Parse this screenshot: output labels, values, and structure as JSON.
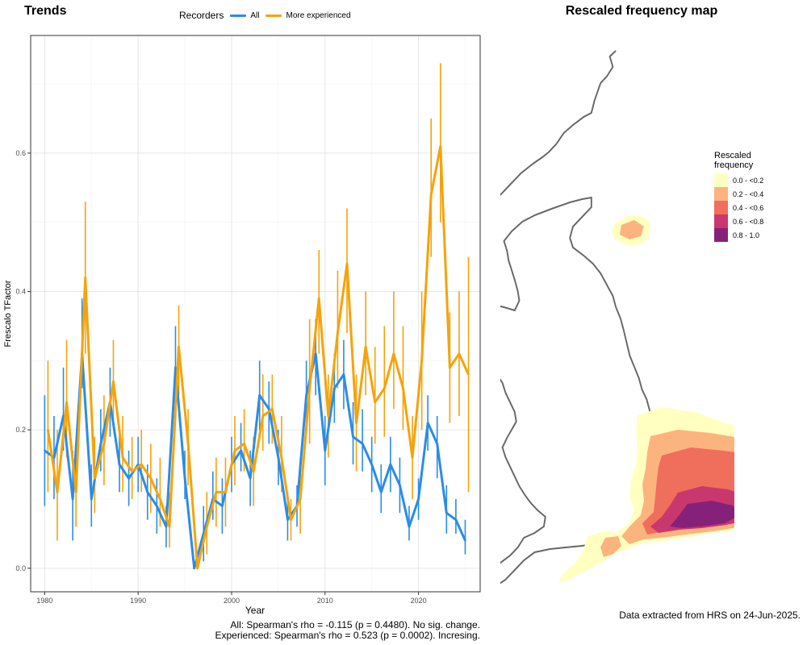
{
  "left_panel": {
    "title": "Trends",
    "legend": {
      "title": "Recorders",
      "items": [
        {
          "label": "All",
          "color": "#2B8CE6"
        },
        {
          "label": "More experienced",
          "color": "#F5A30A"
        }
      ]
    },
    "stats": {
      "all": "All: Spearman's rho = -0.115 (p = 0.4480). No sig. change.",
      "experienced": "Experienced: Spearman's rho = 0.523 (p = 0.0002). Incresing."
    }
  },
  "chart_data": {
    "type": "line",
    "xlabel": "Year",
    "ylabel": "Frescalo TFactor",
    "xlim": [
      1978.5,
      2026.6
    ],
    "ylim": [
      -0.034,
      0.77
    ],
    "x_ticks": [
      1980,
      1990,
      2000,
      2010,
      2020
    ],
    "y_ticks": [
      0.0,
      0.2,
      0.4,
      0.6
    ],
    "y_tick_labels": [
      "0.0",
      "0.2",
      "0.4",
      "0.6"
    ],
    "grid": true,
    "series": [
      {
        "name": "All",
        "color": "#2B8CE6",
        "x": [
          1980,
          1981,
          1982,
          1983,
          1984,
          1985,
          1986,
          1987,
          1988,
          1989,
          1990,
          1991,
          1992,
          1993,
          1994,
          1995,
          1996,
          1997,
          1998,
          1999,
          2000,
          2001,
          2002,
          2003,
          2004,
          2005,
          2006,
          2007,
          2008,
          2009,
          2010,
          2011,
          2012,
          2013,
          2014,
          2015,
          2016,
          2017,
          2018,
          2019,
          2020,
          2021,
          2022,
          2023,
          2024,
          2025
        ],
        "values": [
          0.17,
          0.16,
          0.22,
          0.1,
          0.31,
          0.1,
          0.18,
          0.24,
          0.15,
          0.13,
          0.15,
          0.11,
          0.09,
          0.06,
          0.29,
          0.13,
          0.0,
          0.05,
          0.1,
          0.09,
          0.15,
          0.17,
          0.13,
          0.25,
          0.23,
          0.16,
          0.07,
          0.09,
          0.25,
          0.31,
          0.17,
          0.26,
          0.28,
          0.19,
          0.18,
          0.15,
          0.11,
          0.15,
          0.12,
          0.06,
          0.1,
          0.21,
          0.18,
          0.08,
          0.07,
          0.04
        ],
        "err_low": [
          0.09,
          0.1,
          0.17,
          0.04,
          0.26,
          0.06,
          0.14,
          0.19,
          0.11,
          0.09,
          0.11,
          0.07,
          0.05,
          0.03,
          0.23,
          0.1,
          0.0,
          0.01,
          0.07,
          0.05,
          0.11,
          0.14,
          0.09,
          0.2,
          0.18,
          0.12,
          0.04,
          0.06,
          0.2,
          0.25,
          0.12,
          0.21,
          0.23,
          0.15,
          0.14,
          0.11,
          0.08,
          0.11,
          0.08,
          0.04,
          0.07,
          0.17,
          0.13,
          0.05,
          0.05,
          0.02
        ],
        "err_high": [
          0.25,
          0.22,
          0.29,
          0.17,
          0.39,
          0.15,
          0.23,
          0.29,
          0.2,
          0.17,
          0.19,
          0.15,
          0.13,
          0.09,
          0.35,
          0.17,
          0.01,
          0.09,
          0.14,
          0.13,
          0.19,
          0.21,
          0.17,
          0.3,
          0.27,
          0.2,
          0.11,
          0.12,
          0.3,
          0.36,
          0.22,
          0.31,
          0.33,
          0.24,
          0.23,
          0.19,
          0.15,
          0.19,
          0.16,
          0.09,
          0.13,
          0.25,
          0.22,
          0.12,
          0.1,
          0.07
        ]
      },
      {
        "name": "More experienced",
        "color": "#F5A30A",
        "x": [
          1980,
          1981,
          1982,
          1983,
          1984,
          1985,
          1986,
          1987,
          1988,
          1989,
          1990,
          1991,
          1992,
          1993,
          1994,
          1995,
          1996,
          1997,
          1998,
          1999,
          2000,
          2001,
          2002,
          2003,
          2004,
          2005,
          2006,
          2007,
          2008,
          2009,
          2010,
          2011,
          2012,
          2013,
          2014,
          2015,
          2016,
          2017,
          2018,
          2019,
          2020,
          2021,
          2022,
          2023,
          2024,
          2025
        ],
        "values": [
          0.2,
          0.11,
          0.24,
          0.11,
          0.42,
          0.13,
          0.18,
          0.27,
          0.16,
          0.14,
          0.15,
          0.13,
          0.1,
          0.06,
          0.32,
          0.18,
          0.0,
          0.06,
          0.11,
          0.11,
          0.17,
          0.18,
          0.14,
          0.22,
          0.23,
          0.16,
          0.07,
          0.1,
          0.26,
          0.39,
          0.22,
          0.34,
          0.44,
          0.21,
          0.32,
          0.24,
          0.26,
          0.31,
          0.26,
          0.16,
          0.3,
          0.54,
          0.61,
          0.29,
          0.31,
          0.28
        ],
        "err_low": [
          0.11,
          0.04,
          0.16,
          0.06,
          0.31,
          0.08,
          0.12,
          0.21,
          0.11,
          0.1,
          0.11,
          0.08,
          0.06,
          0.03,
          0.25,
          0.12,
          0.0,
          0.02,
          0.06,
          0.06,
          0.12,
          0.14,
          0.09,
          0.17,
          0.18,
          0.11,
          0.04,
          0.05,
          0.18,
          0.31,
          0.16,
          0.26,
          0.34,
          0.14,
          0.25,
          0.18,
          0.19,
          0.23,
          0.2,
          0.1,
          0.2,
          0.45,
          0.5,
          0.21,
          0.22,
          0.11
        ],
        "err_high": [
          0.3,
          0.2,
          0.33,
          0.18,
          0.53,
          0.19,
          0.25,
          0.33,
          0.22,
          0.19,
          0.2,
          0.18,
          0.16,
          0.11,
          0.38,
          0.23,
          0.02,
          0.11,
          0.16,
          0.16,
          0.22,
          0.23,
          0.19,
          0.28,
          0.28,
          0.22,
          0.1,
          0.16,
          0.36,
          0.46,
          0.28,
          0.43,
          0.52,
          0.28,
          0.4,
          0.32,
          0.35,
          0.4,
          0.35,
          0.22,
          0.4,
          0.65,
          0.73,
          0.37,
          0.4,
          0.45
        ]
      }
    ]
  },
  "right_panel": {
    "title": "Rescaled frequency map",
    "legend": {
      "title_line1": "Rescaled",
      "title_line2": "frequency",
      "items": [
        {
          "label": "0.0 - <0.2",
          "color": "#FFFFC0"
        },
        {
          "label": "0.2 - <0.4",
          "color": "#FBB47E"
        },
        {
          "label": "0.4 - <0.6",
          "color": "#F06E5C"
        },
        {
          "label": "0.6 - <0.8",
          "color": "#C8386E"
        },
        {
          "label": "0.8 - 1.0",
          "color": "#86217A"
        }
      ]
    },
    "note": "Data extracted from HRS on 24-Jun-2025."
  }
}
